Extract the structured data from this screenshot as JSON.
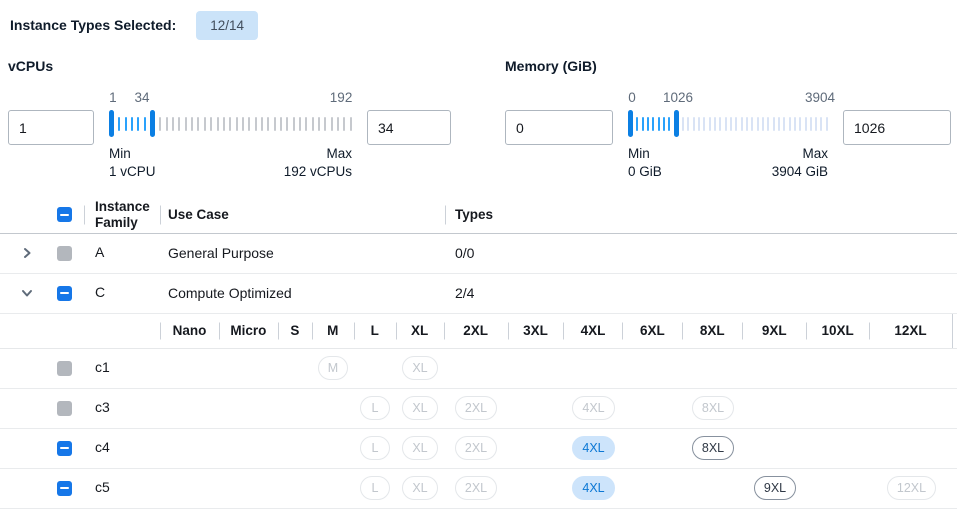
{
  "header": {
    "label": "Instance Types Selected:",
    "badge": "12/14"
  },
  "filters": [
    {
      "title": "vCPUs",
      "min_input": "1",
      "max_input": "34",
      "slider": {
        "labels": [
          {
            "text": "1",
            "pct": 1.6
          },
          {
            "text": "34",
            "pct": 13.6
          },
          {
            "text": "192",
            "pct": 95.5
          }
        ],
        "ticks_selected": 5,
        "ticks_unselected": 31,
        "unselected_color": "#c6c9ce",
        "min_label": "Min",
        "min_value": "1 vCPU",
        "max_label": "Max",
        "max_value": "192 vCPUs"
      }
    },
    {
      "title": "Memory (GiB)",
      "min_input": "0",
      "max_input": "1026",
      "slider": {
        "labels": [
          {
            "text": "0",
            "pct": 2
          },
          {
            "text": "1026",
            "pct": 25
          },
          {
            "text": "3904",
            "pct": 96
          }
        ],
        "ticks_selected": 7,
        "ticks_unselected": 28,
        "unselected_color": "#d9e3f5",
        "min_label": "Min",
        "min_value": "0 GiB",
        "max_label": "Max",
        "max_value": "3904 GiB"
      }
    }
  ],
  "table": {
    "columns": {
      "family": "Instance Family",
      "use_case": "Use Case",
      "types": "Types"
    },
    "size_columns": [
      "Nano",
      "Micro",
      "S",
      "M",
      "L",
      "XL",
      "2XL",
      "3XL",
      "4XL",
      "6XL",
      "8XL",
      "9XL",
      "10XL",
      "12XL"
    ],
    "size_col_widths": [
      59,
      59,
      34,
      42,
      42,
      48,
      64,
      56,
      59,
      60,
      60,
      64,
      63,
      83
    ],
    "family_rows": [
      {
        "family": "A",
        "use_case": "General Purpose",
        "types": "0/0",
        "expanded": false,
        "checkbox": "disabled"
      },
      {
        "family": "C",
        "use_case": "Compute Optimized",
        "types": "2/4",
        "expanded": true,
        "checkbox": "indeterminate"
      }
    ],
    "instance_rows": [
      {
        "name": "c1",
        "checkbox": "disabled",
        "chips": [
          {
            "size": "M",
            "state": "disabled"
          },
          {
            "size": "XL",
            "state": "disabled"
          }
        ]
      },
      {
        "name": "c3",
        "checkbox": "disabled",
        "chips": [
          {
            "size": "L",
            "state": "disabled"
          },
          {
            "size": "XL",
            "state": "disabled"
          },
          {
            "size": "2XL",
            "state": "disabled"
          },
          {
            "size": "4XL",
            "state": "disabled"
          },
          {
            "size": "8XL",
            "state": "disabled"
          }
        ]
      },
      {
        "name": "c4",
        "checkbox": "indeterminate",
        "chips": [
          {
            "size": "L",
            "state": "disabled"
          },
          {
            "size": "XL",
            "state": "disabled"
          },
          {
            "size": "2XL",
            "state": "disabled"
          },
          {
            "size": "4XL",
            "state": "selected"
          },
          {
            "size": "8XL",
            "state": "enabled"
          }
        ]
      },
      {
        "name": "c5",
        "checkbox": "indeterminate",
        "chips": [
          {
            "size": "L",
            "state": "disabled"
          },
          {
            "size": "XL",
            "state": "disabled"
          },
          {
            "size": "2XL",
            "state": "disabled"
          },
          {
            "size": "4XL",
            "state": "selected"
          },
          {
            "size": "9XL",
            "state": "enabled"
          },
          {
            "size": "12XL",
            "state": "disabled"
          }
        ]
      }
    ]
  },
  "colors": {
    "tick_selected": "#2aa2fc",
    "handle": "#0b7fe3",
    "checkbox_blue": "#1677e8",
    "selected_chip_bg": "#cde4fb",
    "badge_bg": "#cbe3f9"
  }
}
